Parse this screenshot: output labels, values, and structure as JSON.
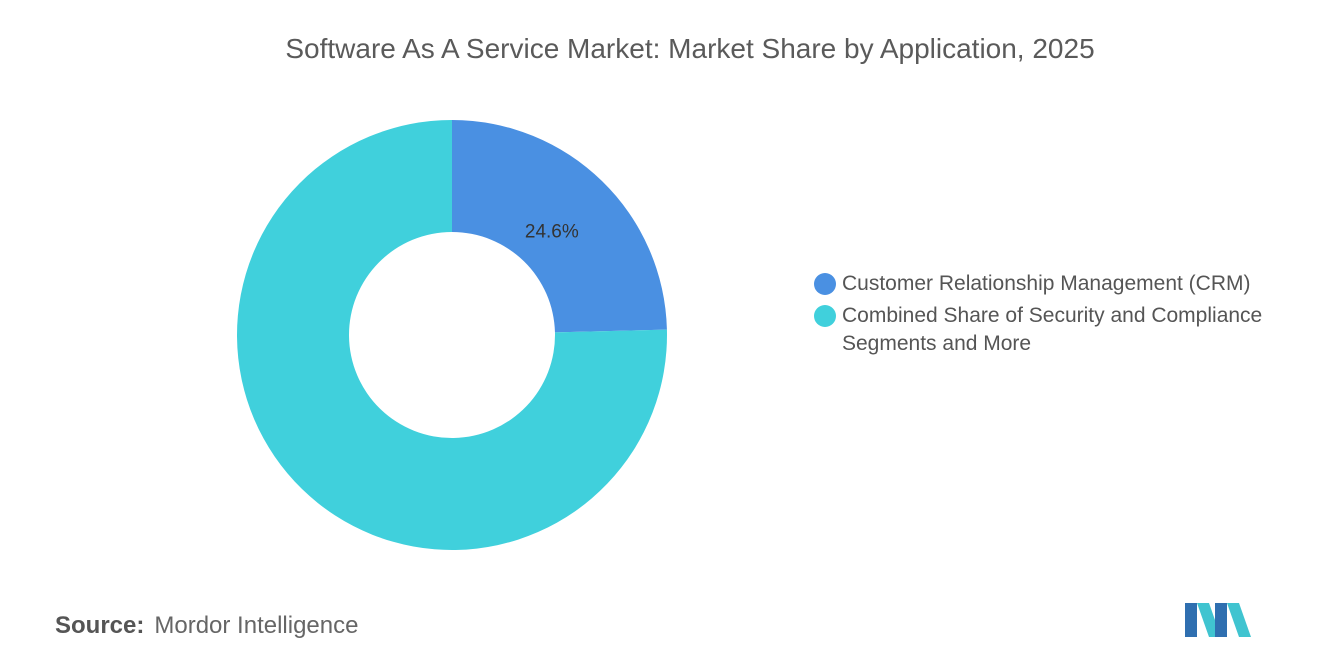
{
  "chart_data": {
    "type": "donut",
    "title": "Software As A Service Market: Market Share by Application, 2025",
    "categories": [
      "Customer Relationship Management (CRM)",
      "Combined Share of Security and Compliance Segments and More"
    ],
    "values": [
      24.6,
      75.4
    ],
    "value_labels": [
      "24.6%",
      null
    ],
    "colors": [
      "#4a90e2",
      "#40d0dc"
    ],
    "source_label": "Source:",
    "source": "Mordor Intelligence"
  }
}
